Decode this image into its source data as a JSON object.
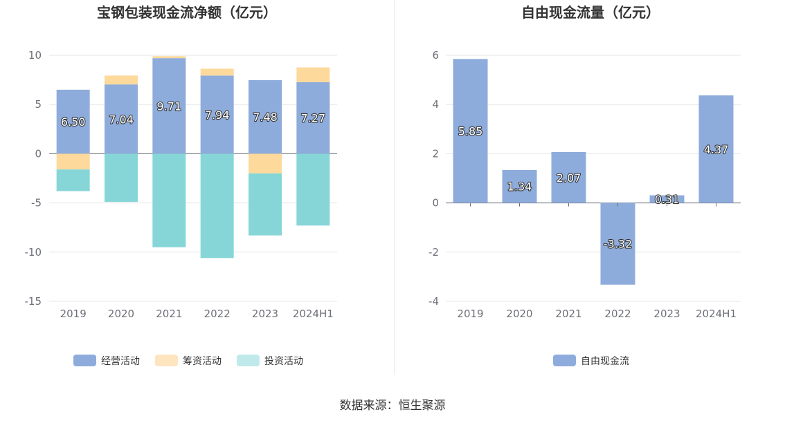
{
  "colors": {
    "operating": "#8eacdb",
    "financing": "#fdd99c",
    "investing": "#86d6d8",
    "fcf": "#8eacdb",
    "legend_financing": "#fde5c0",
    "legend_investing": "#c0e9eb",
    "grid": "#e6e6e6",
    "axis": "#6e7079",
    "divider": "#e5e5e5"
  },
  "chart_data": [
    {
      "type": "bar",
      "stacked": true,
      "title": "宝钢包装现金流净额（亿元）",
      "categories": [
        "2019",
        "2020",
        "2021",
        "2022",
        "2023",
        "2024H1"
      ],
      "ylim": [
        -15,
        10
      ],
      "yticks": [
        10,
        5,
        0,
        -5,
        -10,
        -15
      ],
      "grid": true,
      "legend_position": "bottom",
      "series": [
        {
          "name": "经营活动",
          "values": [
            6.5,
            7.04,
            9.71,
            7.94,
            7.48,
            7.27
          ],
          "labels": [
            "6.50",
            "7.04",
            "9.71",
            "7.94",
            "7.48",
            "7.27"
          ]
        },
        {
          "name": "筹资活动",
          "values": [
            -1.6,
            0.9,
            0.2,
            0.7,
            -2.0,
            1.5
          ]
        },
        {
          "name": "投资活动",
          "values": [
            -2.2,
            -4.9,
            -9.5,
            -10.6,
            -6.3,
            -7.3
          ]
        }
      ]
    },
    {
      "type": "bar",
      "title": "自由现金流量（亿元）",
      "categories": [
        "2019",
        "2020",
        "2021",
        "2022",
        "2023",
        "2024H1"
      ],
      "ylim": [
        -4,
        6
      ],
      "yticks": [
        6,
        4,
        2,
        0,
        -2,
        -4
      ],
      "grid": true,
      "legend_position": "bottom",
      "series": [
        {
          "name": "自由现金流",
          "values": [
            5.85,
            1.34,
            2.07,
            -3.32,
            0.31,
            4.37
          ],
          "labels": [
            "5.85",
            "1.34",
            "2.07",
            "-3.32",
            "0.31",
            "4.37"
          ]
        }
      ]
    }
  ],
  "source_text": "数据来源：恒生聚源"
}
